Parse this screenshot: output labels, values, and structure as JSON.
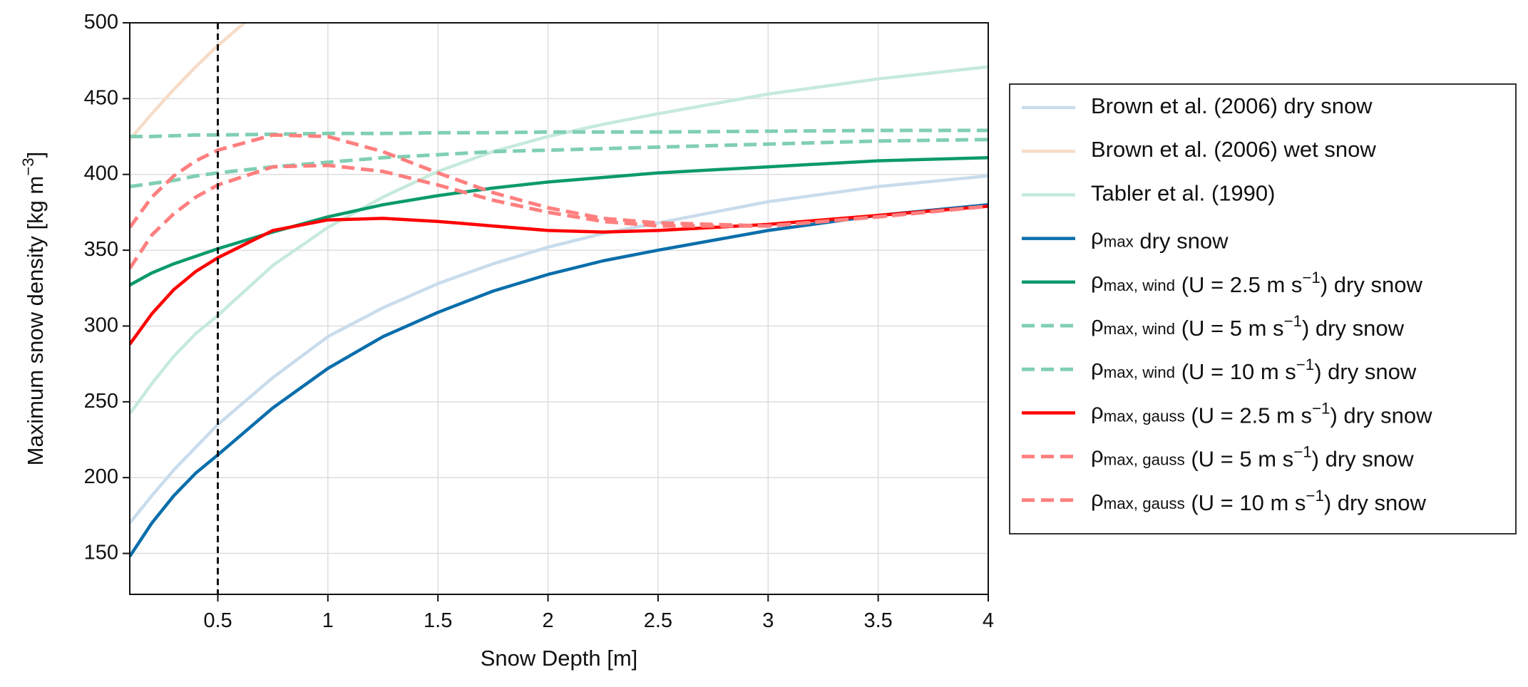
{
  "chart_data": {
    "type": "line",
    "xlabel": "Snow Depth [m]",
    "ylabel": "Maximum snow density [kg m−3]",
    "x": [
      0.1,
      0.2,
      0.3,
      0.4,
      0.5,
      0.75,
      1,
      1.25,
      1.5,
      1.75,
      2,
      2.25,
      2.5,
      3,
      3.5,
      4
    ],
    "series": [
      {
        "name": "Brown et al. (2006) dry snow",
        "color": "#c9dcec",
        "linestyle": "solid",
        "values": [
          170,
          188,
          205,
          220,
          235,
          266,
          293,
          312,
          328,
          341,
          352,
          361,
          368,
          382,
          392,
          399
        ]
      },
      {
        "name": "Brown et al. (2006) wet snow",
        "color": "#f6dcc8",
        "linestyle": "solid",
        "values": [
          423,
          440,
          456,
          471,
          485,
          516,
          null,
          null,
          null,
          null,
          null,
          null,
          null,
          null,
          null,
          null
        ]
      },
      {
        "name": "Tabler et al. (1990)",
        "color": "#c6eadc",
        "linestyle": "solid",
        "values": [
          242,
          262,
          280,
          295,
          307,
          340,
          365,
          385,
          402,
          415,
          425,
          433,
          440,
          453,
          463,
          471
        ]
      },
      {
        "name": "ρmax dry snow",
        "color": "#0a6eab",
        "linestyle": "solid",
        "values": [
          148,
          170,
          188,
          203,
          215,
          246,
          272,
          293,
          309,
          323,
          334,
          343,
          350,
          363,
          373,
          380
        ]
      },
      {
        "name": "ρmax, wind (U = 2.5 m s−1) dry snow",
        "color": "#0b9a6d",
        "linestyle": "solid",
        "values": [
          327,
          335,
          341,
          346,
          351,
          362,
          372,
          380,
          386,
          391,
          395,
          398,
          401,
          405,
          409,
          411
        ]
      },
      {
        "name": "ρmax, wind (U = 5 m s−1) dry snow",
        "color": "#80cfb3",
        "linestyle": "dashed",
        "values": [
          392,
          394,
          396,
          399,
          401,
          405,
          408,
          411,
          413,
          415,
          416,
          417,
          418,
          420,
          422,
          423
        ]
      },
      {
        "name": "ρmax, wind (U = 10 m s−1) dry snow",
        "color": "#80cfb3",
        "linestyle": "dashed",
        "values": [
          425,
          425,
          425.5,
          426,
          426,
          426.5,
          427,
          427,
          427.5,
          427.5,
          428,
          428,
          428,
          428.5,
          429,
          429
        ]
      },
      {
        "name": "ρmax, gauss (U = 2.5 m s−1) dry snow",
        "color": "#ff0000",
        "linestyle": "solid",
        "values": [
          288,
          308,
          324,
          336,
          345,
          363,
          370,
          371,
          369,
          366,
          363,
          362,
          363,
          367,
          373,
          379
        ]
      },
      {
        "name": "ρmax, gauss (U = 5 m s−1) dry snow",
        "color": "#ff7f7f",
        "linestyle": "dashed",
        "values": [
          338,
          360,
          374,
          385,
          393,
          405,
          406,
          402,
          393,
          383,
          375,
          369,
          366,
          366,
          372,
          379
        ]
      },
      {
        "name": "ρmax, gauss (U = 10 m s−1) dry snow",
        "color": "#ff7f7f",
        "linestyle": "dashed",
        "values": [
          365,
          385,
          399,
          409,
          416,
          426,
          425,
          415,
          401,
          388,
          378,
          371,
          368,
          366,
          372,
          379
        ]
      }
    ],
    "vline": 0.5,
    "xlim": [
      0.1,
      4
    ],
    "ylim": [
      123,
      500
    ],
    "xticks": [
      0.5,
      1,
      1.5,
      2,
      2.5,
      3,
      3.5,
      4
    ],
    "yticks": [
      150,
      200,
      250,
      300,
      350,
      400,
      450,
      500
    ],
    "grid": true,
    "legend": "outside right"
  }
}
